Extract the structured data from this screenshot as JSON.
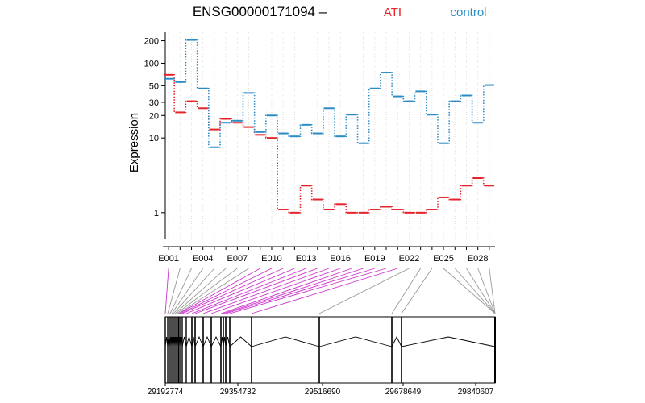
{
  "chart_data": {
    "type": "line",
    "title": "ENSG00000171094 –",
    "ylabel": "Expression",
    "y_scale": "log",
    "y_ticks": [
      1,
      10,
      20,
      30,
      50,
      100,
      200
    ],
    "y_tick_labels": [
      "1",
      "10",
      "20",
      "30",
      "50",
      "100",
      "200"
    ],
    "ylim": [
      0.45,
      260
    ],
    "categories": [
      "E001",
      "E002",
      "E003",
      "E004",
      "E005",
      "E006",
      "E007",
      "E008",
      "E009",
      "E010",
      "E011",
      "E012",
      "E013",
      "E014",
      "E015",
      "E016",
      "E017",
      "E018",
      "E019",
      "E020",
      "E021",
      "E022",
      "E023",
      "E024",
      "E025",
      "E026",
      "E027",
      "E028",
      "E029"
    ],
    "x_tick_labels": [
      "E001",
      "E004",
      "E007",
      "E010",
      "E013",
      "E016",
      "E019",
      "E022",
      "E025",
      "E028"
    ],
    "series": [
      {
        "name": "ATI",
        "color": "#e3242b",
        "values": [
          70,
          22,
          31,
          25,
          13,
          18,
          16,
          14,
          11,
          10,
          1.1,
          1.0,
          2.3,
          1.5,
          1.1,
          1.3,
          1.0,
          1.0,
          1.1,
          1.2,
          1.1,
          1.0,
          1.0,
          1.1,
          1.6,
          1.5,
          2.3,
          2.9,
          2.3
        ]
      },
      {
        "name": "control",
        "color": "#2b8cc4",
        "values": [
          62,
          56,
          205,
          46,
          7.5,
          16,
          17,
          40,
          12,
          20,
          11.5,
          10.5,
          15,
          11.5,
          25,
          10.5,
          20.5,
          8.5,
          46,
          75,
          36,
          31,
          42,
          20.5,
          8.5,
          31,
          37,
          16,
          51
        ]
      }
    ],
    "grid": "vertical dotted",
    "legend_placement": "top-right",
    "gene_model": {
      "coordinate_labels": [
        "29192774",
        "29354732",
        "29516690",
        "29678649",
        "29840607"
      ],
      "highlight_color": "#cc33cc",
      "line_color": "#999999"
    }
  }
}
